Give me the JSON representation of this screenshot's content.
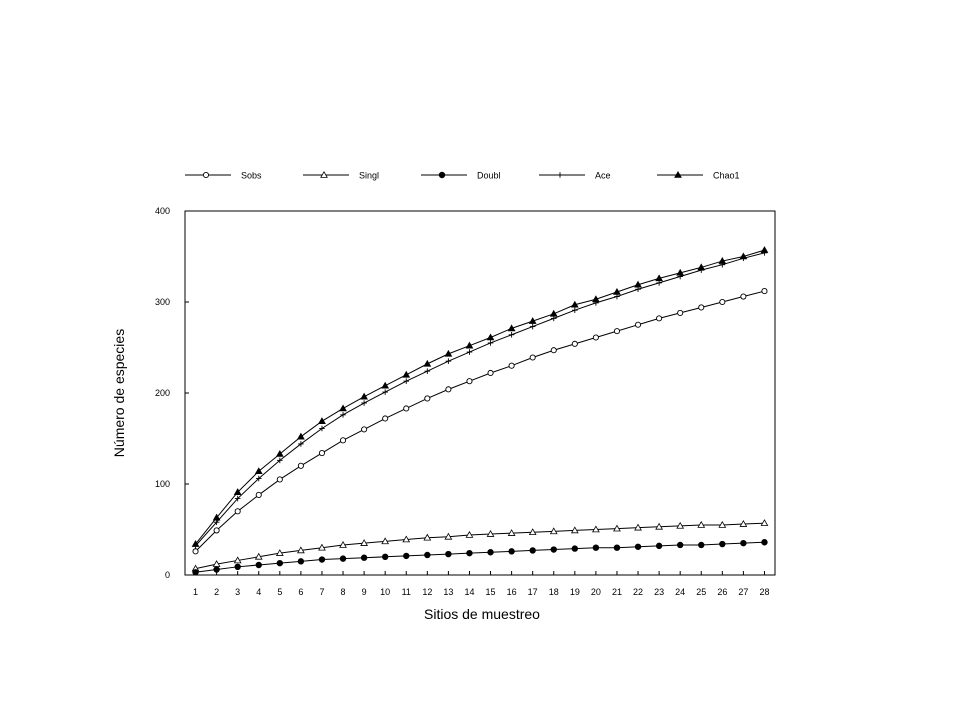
{
  "chart_data": {
    "type": "line",
    "xlabel": "Sitios de muestreo",
    "ylabel": "Número de especies",
    "ylim": [
      0,
      400
    ],
    "yticks": [
      0,
      100,
      200,
      300,
      400
    ],
    "xlim": [
      0.5,
      28.5
    ],
    "x": [
      1,
      2,
      3,
      4,
      5,
      6,
      7,
      8,
      9,
      10,
      11,
      12,
      13,
      14,
      15,
      16,
      17,
      18,
      19,
      20,
      21,
      22,
      23,
      24,
      25,
      26,
      27,
      28
    ],
    "grid": false,
    "legend_position": "top",
    "series": [
      {
        "name": "Sobs",
        "marker": "open-circle",
        "values": [
          26,
          49,
          70,
          88,
          105,
          120,
          134,
          148,
          160,
          172,
          183,
          194,
          204,
          213,
          222,
          230,
          239,
          247,
          254,
          261,
          268,
          275,
          282,
          288,
          294,
          300,
          306,
          312
        ]
      },
      {
        "name": "Singl",
        "marker": "open-triangle",
        "values": [
          7,
          12,
          16,
          20,
          24,
          27,
          30,
          33,
          35,
          37,
          39,
          41,
          42,
          44,
          45,
          46,
          47,
          48,
          49,
          50,
          51,
          52,
          53,
          54,
          55,
          55,
          56,
          57
        ]
      },
      {
        "name": "Doubl",
        "marker": "filled-circle",
        "values": [
          3,
          6,
          9,
          11,
          13,
          15,
          17,
          18,
          19,
          20,
          21,
          22,
          23,
          24,
          25,
          26,
          27,
          28,
          29,
          30,
          30,
          31,
          32,
          33,
          33,
          34,
          35,
          36
        ]
      },
      {
        "name": "Ace",
        "marker": "plus",
        "values": [
          32,
          58,
          84,
          106,
          126,
          144,
          161,
          176,
          189,
          201,
          213,
          224,
          235,
          245,
          255,
          264,
          273,
          282,
          291,
          299,
          306,
          314,
          321,
          328,
          335,
          341,
          348,
          354
        ]
      },
      {
        "name": "Chao1",
        "marker": "filled-triangle",
        "values": [
          34,
          63,
          91,
          114,
          133,
          152,
          169,
          183,
          196,
          208,
          220,
          232,
          243,
          252,
          261,
          271,
          279,
          287,
          297,
          303,
          311,
          319,
          326,
          332,
          338,
          345,
          350,
          357
        ]
      }
    ]
  }
}
